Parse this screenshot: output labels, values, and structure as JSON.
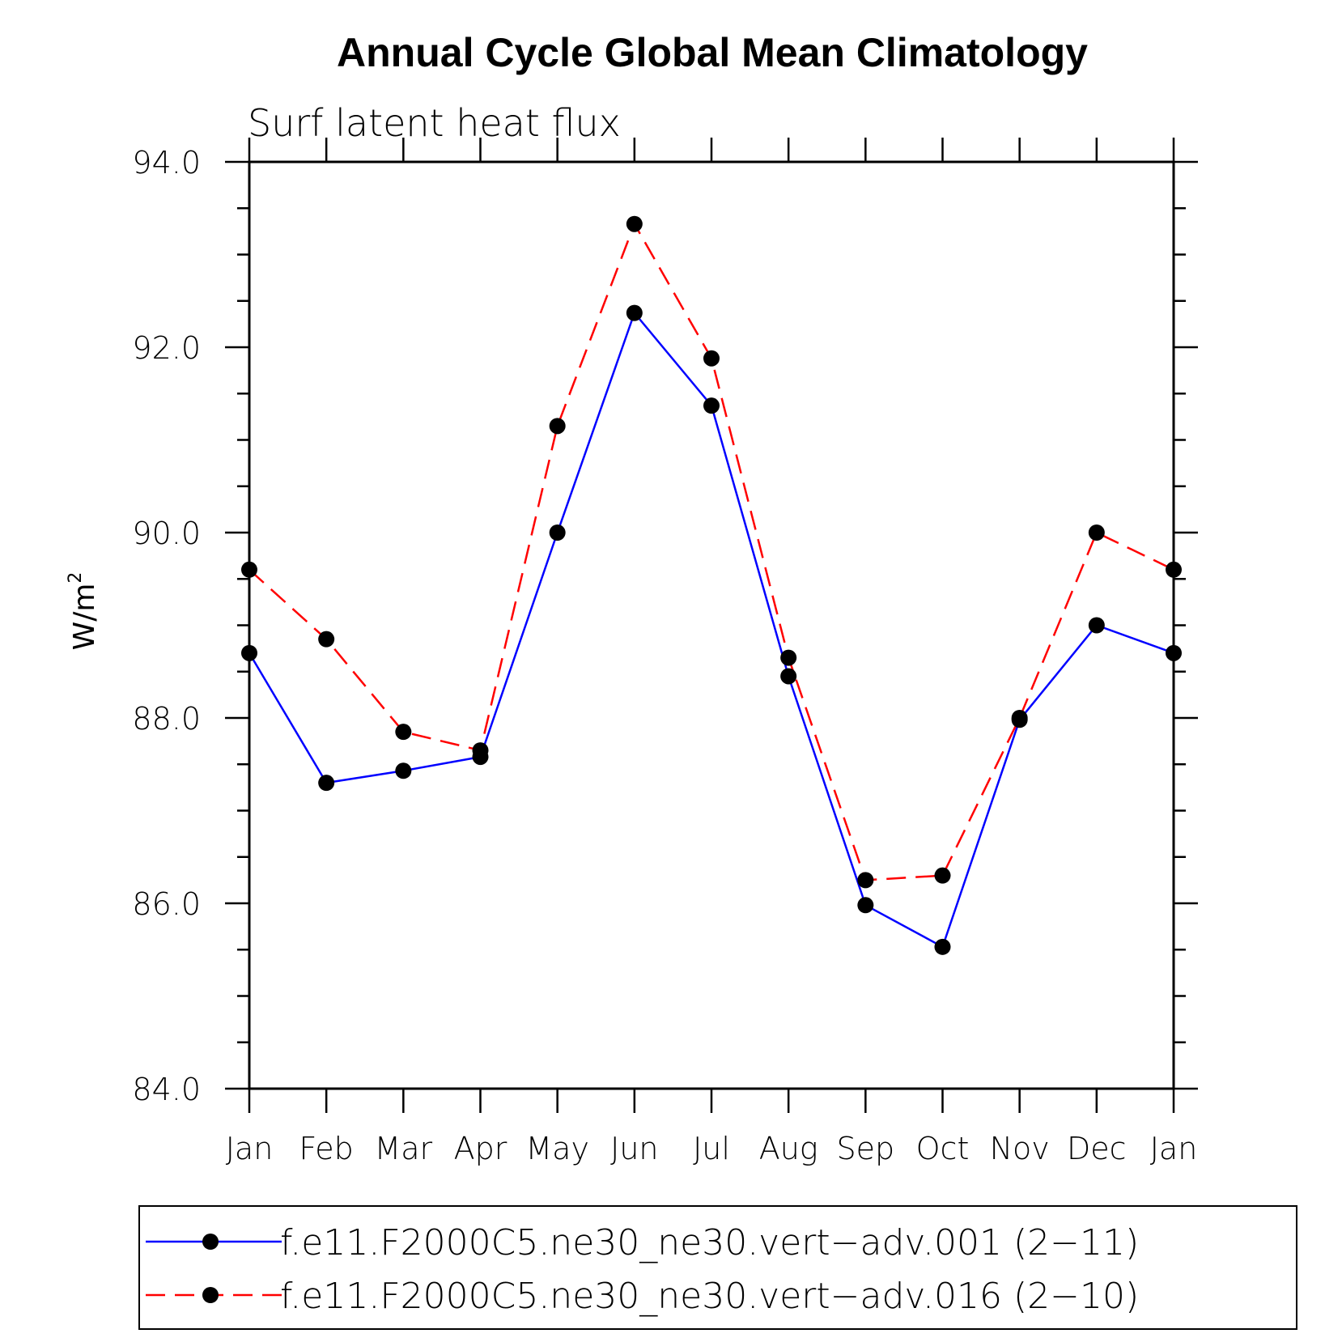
{
  "chart_data": {
    "type": "line",
    "title": "Annual Cycle Global Mean Climatology",
    "subtitle": "Surf latent heat flux",
    "ylabel_main": "W/m",
    "ylabel_sup": "2",
    "xlabel": "",
    "categories": [
      "Jan",
      "Feb",
      "Mar",
      "Apr",
      "May",
      "Jun",
      "Jul",
      "Aug",
      "Sep",
      "Oct",
      "Nov",
      "Dec",
      "Jan"
    ],
    "ylim": [
      84.0,
      94.0
    ],
    "yticks_major": [
      "84.0",
      "86.0",
      "88.0",
      "90.0",
      "92.0",
      "94.0"
    ],
    "grid": false,
    "legend_position": "bottom",
    "series": [
      {
        "name": "f.e11.F2000C5.ne30_ne30.vert−adv.001 (2−11)",
        "color": "#0000ff",
        "line": "solid",
        "marker": "filled-circle",
        "values": [
          88.7,
          87.3,
          87.43,
          87.58,
          90.0,
          92.37,
          91.37,
          88.45,
          85.98,
          85.53,
          87.98,
          89.0,
          88.7
        ]
      },
      {
        "name": "f.e11.F2000C5.ne30_ne30.vert−adv.016 (2−10)",
        "color": "#ff0000",
        "line": "dashed",
        "marker": "filled-circle",
        "values": [
          89.6,
          88.85,
          87.85,
          87.65,
          91.15,
          93.33,
          91.88,
          88.65,
          86.25,
          86.3,
          88.0,
          90.0,
          89.6
        ]
      }
    ]
  }
}
